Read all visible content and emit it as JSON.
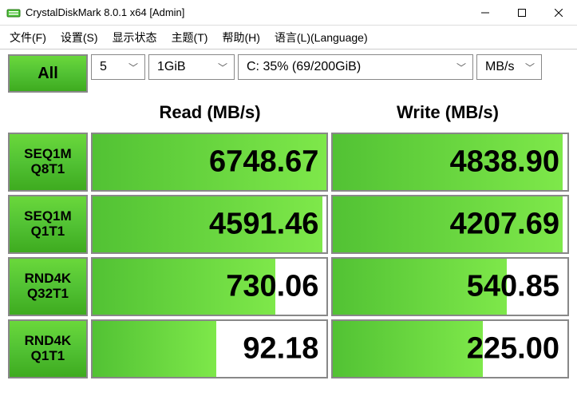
{
  "window": {
    "title": "CrystalDiskMark 8.0.1 x64 [Admin]"
  },
  "menu": {
    "file": "文件(F)",
    "settings": "设置(S)",
    "display": "显示状态",
    "theme": "主题(T)",
    "help": "帮助(H)",
    "language": "语言(L)(Language)"
  },
  "controls": {
    "all_label": "All",
    "count": "5",
    "size": "1GiB",
    "drive": "C: 35% (69/200GiB)",
    "unit": "MB/s"
  },
  "headers": {
    "read": "Read (MB/s)",
    "write": "Write (MB/s)"
  },
  "tests": [
    {
      "line1": "SEQ1M",
      "line2": "Q8T1",
      "read": "6748.67",
      "read_pct": 100,
      "write": "4838.90",
      "write_pct": 98
    },
    {
      "line1": "SEQ1M",
      "line2": "Q1T1",
      "read": "4591.46",
      "read_pct": 98,
      "write": "4207.69",
      "write_pct": 98
    },
    {
      "line1": "RND4K",
      "line2": "Q32T1",
      "read": "730.06",
      "read_pct": 78,
      "write": "540.85",
      "write_pct": 74
    },
    {
      "line1": "RND4K",
      "line2": "Q1T1",
      "read": "92.18",
      "read_pct": 53,
      "write": "225.00",
      "write_pct": 64
    }
  ],
  "colors": {
    "btn_grad_top": "#6ad83b",
    "btn_grad_bot": "#3eab1f",
    "cell_border": "#888888",
    "fill_grad_left": "#52c234",
    "fill_grad_right": "#7ee84a",
    "bg": "#ffffff"
  }
}
